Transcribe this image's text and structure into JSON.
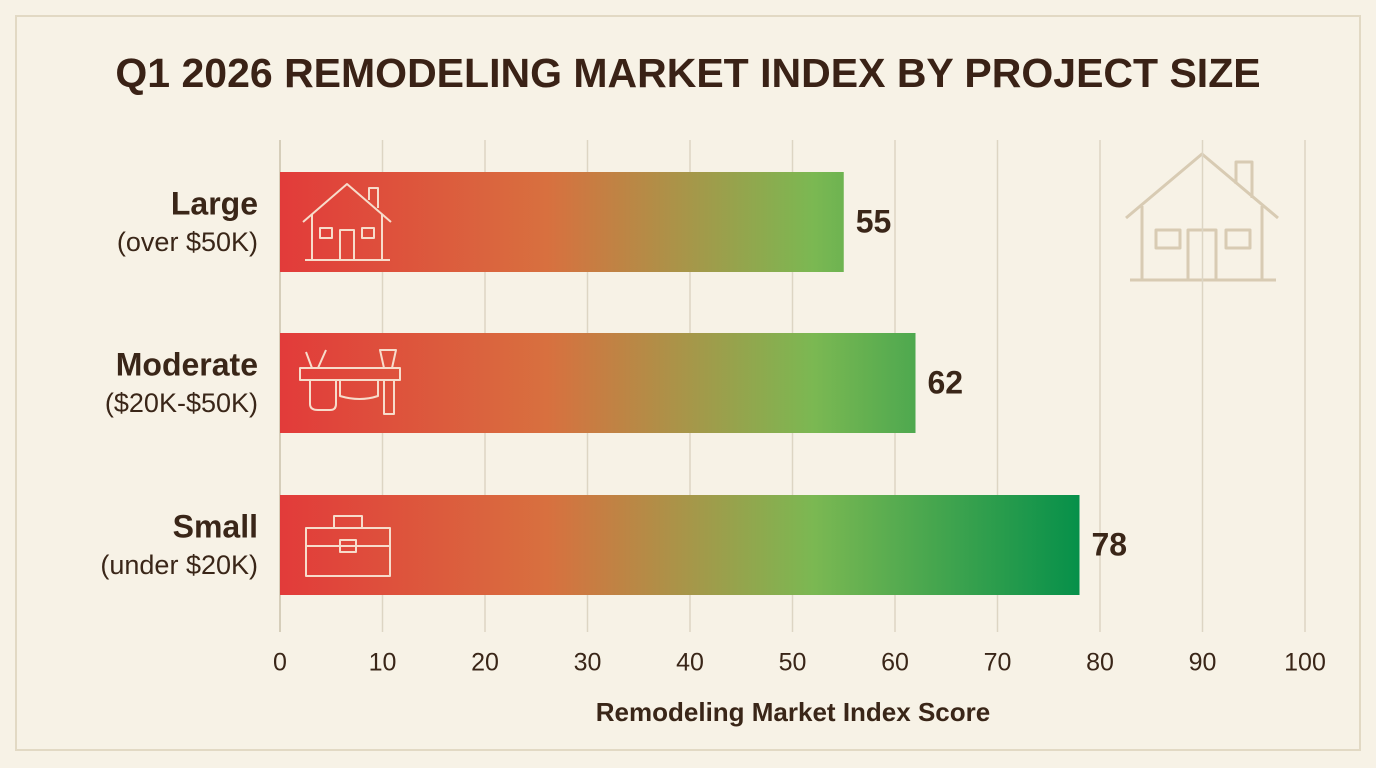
{
  "chart_data": {
    "type": "hbar",
    "title": "Q1 2026 REMODELING MARKET INDEX BY PROJECT SIZE",
    "categories": [
      "Large",
      "Moderate",
      "Small"
    ],
    "category_ranges": [
      "(over $50K)",
      "($20K-$50K)",
      "(under $20K)"
    ],
    "values": [
      55,
      62,
      78
    ],
    "gradient_colors": [
      "#e23b3a",
      "#d8703f",
      "#7bb852",
      "#06904a"
    ],
    "xlabel": "Remodeling Market Index Score",
    "xlim": [
      0,
      100
    ],
    "xticks": [
      0,
      10,
      20,
      30,
      40,
      50,
      60,
      70,
      80,
      90,
      100
    ],
    "grid": true
  }
}
